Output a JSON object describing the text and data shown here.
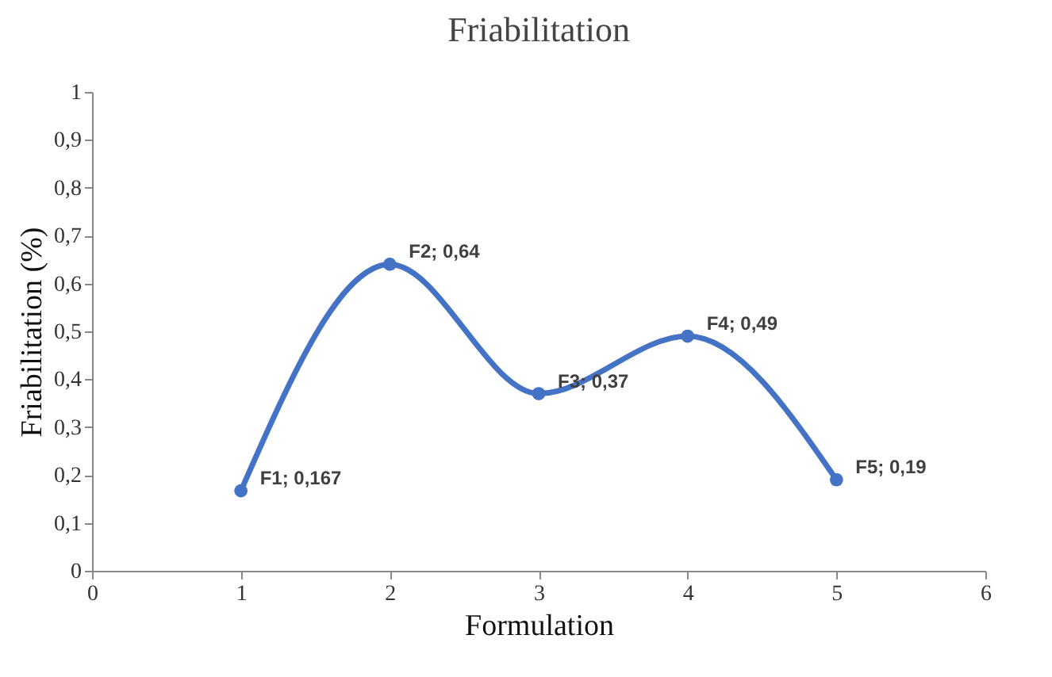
{
  "chart_data": {
    "type": "line",
    "title": "Friabilitation",
    "xlabel": "Formulation",
    "ylabel": "Friabilitation (%)",
    "x": [
      1,
      2,
      3,
      4,
      5
    ],
    "series": [
      {
        "color": "#4472c4",
        "values": [
          0.167,
          0.64,
          0.37,
          0.49,
          0.19
        ],
        "value_labels": [
          "F1; 0,167",
          "F2; 0,64",
          "F3; 0,37",
          "F4; 0,49",
          "F5; 0,19"
        ]
      }
    ],
    "xlim": [
      0,
      6
    ],
    "xticks": [
      0,
      1,
      2,
      3,
      4,
      5,
      6
    ],
    "ylim": [
      0,
      1
    ],
    "yticks": [
      0,
      {
        "value": 0.1,
        "label": "0,1"
      },
      {
        "value": 0.2,
        "label": "0,2"
      },
      {
        "value": 0.3,
        "label": "0,3"
      },
      {
        "value": 0.4,
        "label": "0,4"
      },
      {
        "value": 0.5,
        "label": "0,5"
      },
      {
        "value": 0.6,
        "label": "0,6"
      },
      {
        "value": 0.7,
        "label": "0,7"
      },
      {
        "value": 0.8,
        "label": "0,8"
      },
      {
        "value": 0.9,
        "label": "0,9"
      },
      1
    ],
    "grid": false,
    "marker": "circle",
    "line_style": "solid"
  }
}
